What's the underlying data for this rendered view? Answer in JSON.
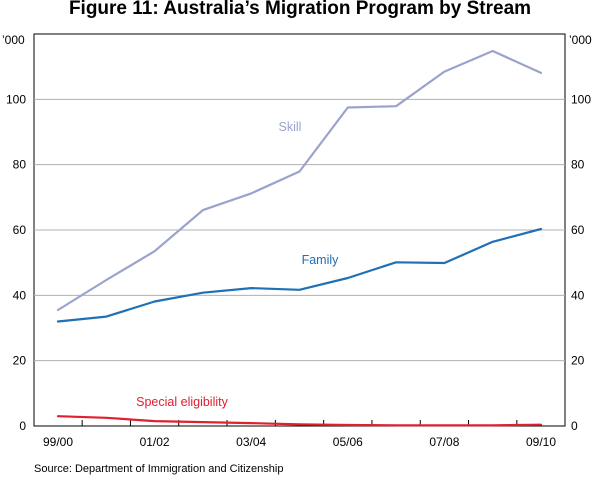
{
  "chart_data": {
    "type": "line",
    "title": "Figure 11: Australia’s Migration Program by Stream",
    "unit_label_left": "’000",
    "unit_label_right": "’000",
    "xlabel": "",
    "ylabel": "’000",
    "ylim": [
      0,
      120
    ],
    "yticks": [
      0,
      20,
      40,
      60,
      80,
      100
    ],
    "x": [
      "99/00",
      "00/01",
      "01/02",
      "02/03",
      "03/04",
      "04/05",
      "05/06",
      "06/07",
      "07/08",
      "08/09",
      "09/10"
    ],
    "x_tick_labels": [
      "99/00",
      "01/02",
      "03/04",
      "05/06",
      "07/08",
      "09/10"
    ],
    "grid": true,
    "series": [
      {
        "name": "Skill",
        "color": "#9ba3cc",
        "values": [
          35.5,
          44.7,
          53.5,
          66.1,
          71.2,
          77.9,
          97.5,
          97.9,
          108.5,
          114.8,
          108.1
        ]
      },
      {
        "name": "Family",
        "color": "#2070b5",
        "values": [
          32.0,
          33.5,
          38.1,
          40.8,
          42.2,
          41.7,
          45.3,
          50.1,
          49.9,
          56.4,
          60.3
        ]
      },
      {
        "name": "Special eligibility",
        "color": "#e0202e",
        "values": [
          3.0,
          2.5,
          1.5,
          1.2,
          0.9,
          0.5,
          0.3,
          0.2,
          0.2,
          0.2,
          0.4
        ]
      }
    ],
    "source": "Source:  Department of Immigration and Citizenship"
  }
}
